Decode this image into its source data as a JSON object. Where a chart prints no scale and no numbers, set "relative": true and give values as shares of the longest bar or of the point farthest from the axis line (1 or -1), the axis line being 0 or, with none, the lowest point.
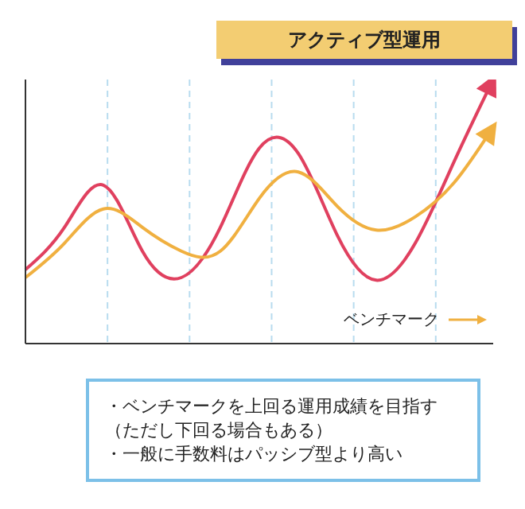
{
  "chart_data": {
    "type": "line",
    "title": "アクティブ型運用",
    "relative": true,
    "grid": "x",
    "legend": "bottom right",
    "marker": "none",
    "line_style": "solid",
    "categories": [
      null,
      null,
      null,
      null,
      null,
      null,
      null,
      null,
      null,
      null,
      null,
      null,
      null
    ],
    "series": [
      {
        "color": "#e0405f",
        "values": [
          0.28,
          0.44,
          0.6,
          0.35,
          0.25,
          0.44,
          0.74,
          0.72,
          0.41,
          0.24,
          0.38,
          0.69,
          1
        ]
      },
      {
        "name": "ベンチマーク",
        "color": "#f0b040",
        "values": [
          0.25,
          0.38,
          0.51,
          0.44,
          0.35,
          0.35,
          0.55,
          0.65,
          0.52,
          0.43,
          0.48,
          0.61,
          0.82
        ]
      }
    ],
    "annotations": [
      "・ベンチマークを上回る運用成績を目指す",
      "（ただし下回る場合もある）",
      "・一般に手数料はパッシブ型より高い"
    ]
  }
}
